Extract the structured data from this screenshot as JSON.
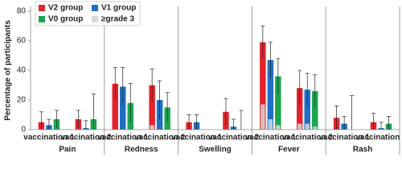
{
  "chart_data": {
    "type": "bar",
    "y_label": "Percentage of participants",
    "groups": [
      "Pain",
      "Redness",
      "Swelling",
      "Fever",
      "Rash"
    ],
    "categories": [
      "vaccination 1",
      "vaccination 2",
      "vaccination 1",
      "vaccination 2",
      "vaccination 1",
      "vaccination 2",
      "vaccination 1",
      "vaccination 2",
      "vaccination 1",
      "vaccination 2"
    ],
    "series": [
      {
        "name": "V2 group",
        "color": "#e3232b",
        "values": [
          5,
          7,
          31,
          30,
          5,
          12,
          59,
          28,
          8,
          5
        ],
        "errors": [
          7,
          6,
          11,
          11,
          5,
          9,
          11,
          12,
          8,
          6
        ],
        "grade3_values": [
          0,
          0,
          0,
          3,
          0,
          0,
          17,
          4,
          0,
          0
        ]
      },
      {
        "name": "V1 group",
        "color": "#1f6fc5",
        "values": [
          3,
          1,
          29,
          20,
          5,
          2,
          47,
          27,
          4,
          1
        ],
        "errors": [
          4,
          5,
          13,
          13,
          5,
          5,
          12,
          11,
          5,
          4
        ],
        "grade3_values": [
          0,
          0,
          0,
          0,
          0,
          0,
          7,
          4,
          0,
          0
        ]
      },
      {
        "name": "V0 group",
        "color": "#1aa650",
        "values": [
          7,
          7,
          18,
          15,
          0,
          0,
          36,
          26,
          0,
          4
        ],
        "errors": [
          6,
          17,
          13,
          10,
          0,
          13,
          12,
          11,
          23,
          5
        ],
        "grade3_values": [
          0,
          0,
          0,
          0,
          0,
          0,
          3,
          2,
          0,
          0
        ]
      }
    ],
    "overlay": {
      "name": "≥grade 3",
      "color": "#d9d9d9"
    },
    "ylim": [
      0,
      80
    ],
    "yticks": [
      0,
      20,
      40,
      60,
      80
    ],
    "grid": false
  }
}
